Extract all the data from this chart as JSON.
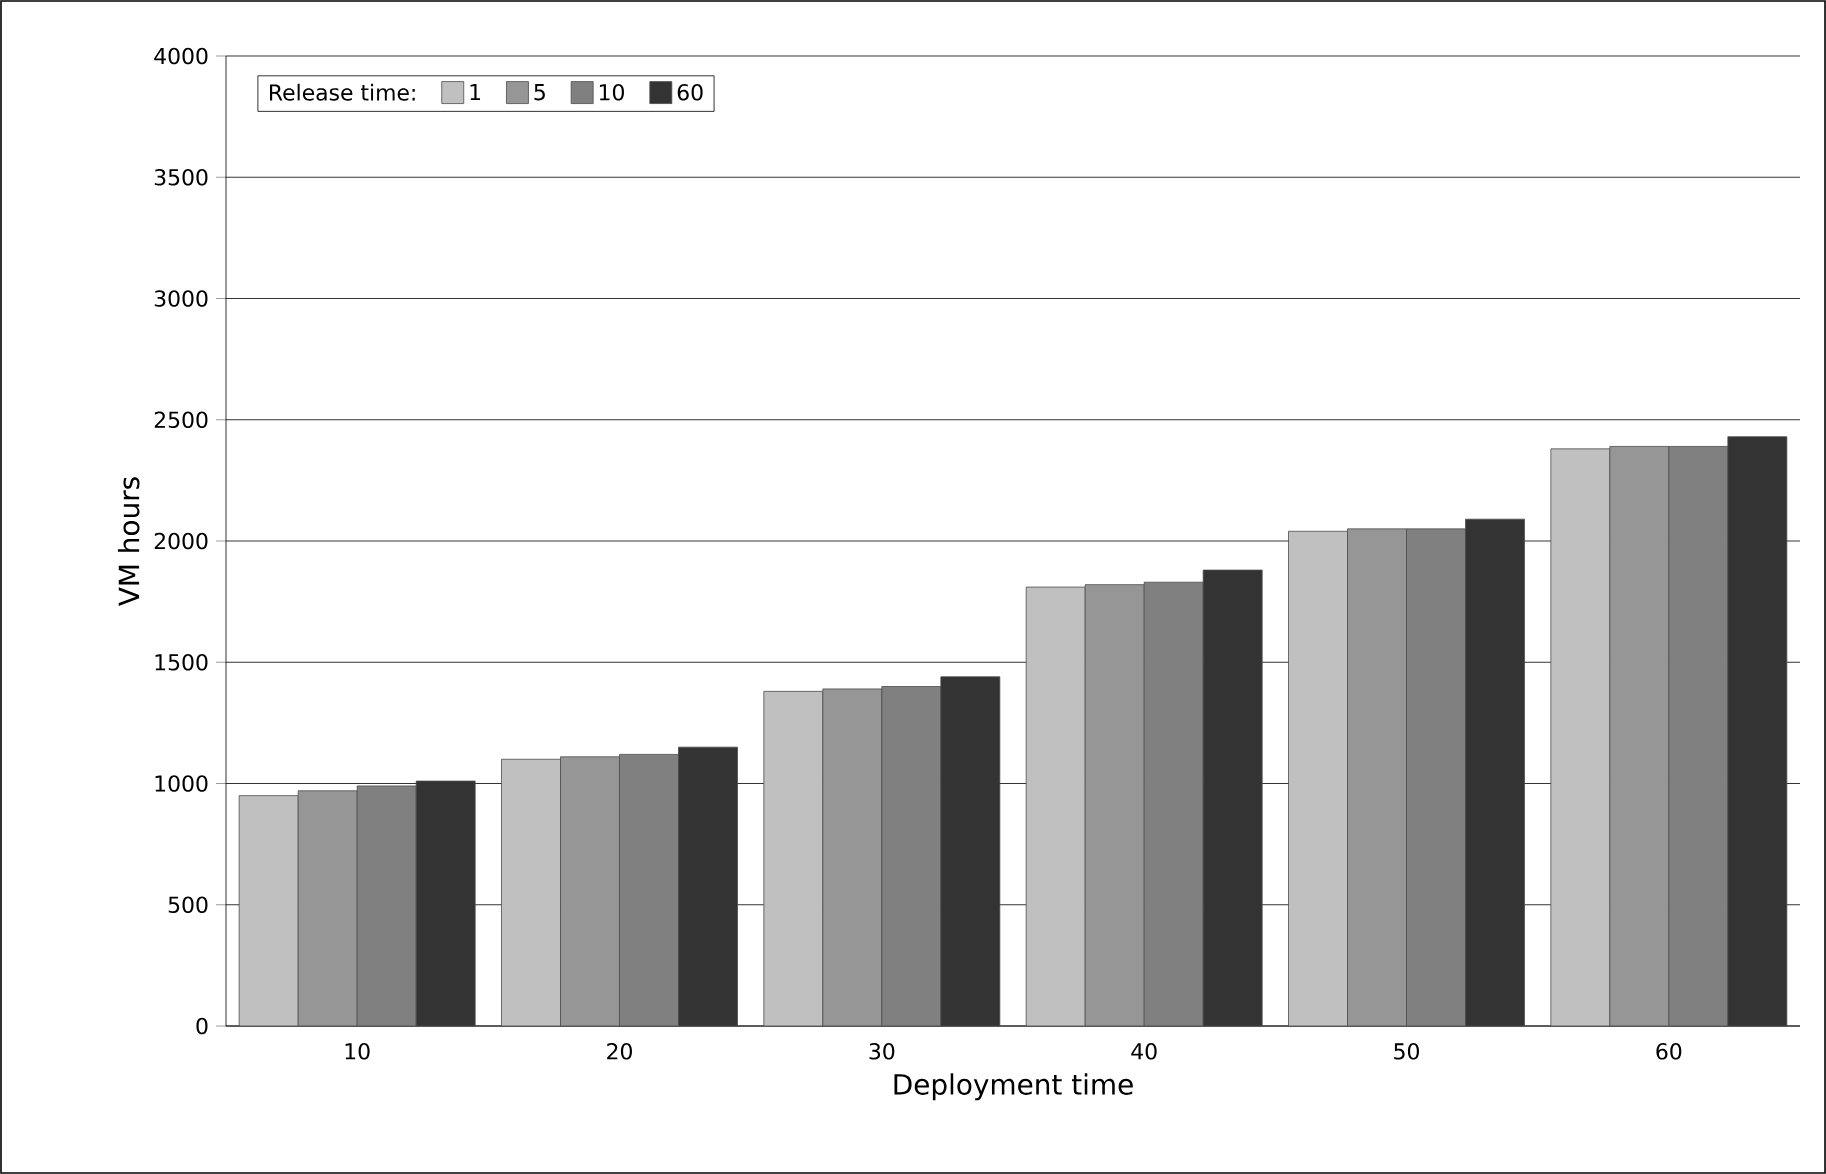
{
  "chart_data": {
    "type": "bar",
    "xlabel": "Deployment time",
    "ylabel": "VM hours",
    "legend_title": "Release time:",
    "categories": [
      "10",
      "20",
      "30",
      "40",
      "50",
      "60"
    ],
    "series": [
      {
        "name": "1",
        "color": "#c0c0c0",
        "values": [
          950,
          1100,
          1380,
          1810,
          2040,
          2380
        ]
      },
      {
        "name": "5",
        "color": "#969696",
        "values": [
          970,
          1110,
          1390,
          1820,
          2050,
          2390
        ]
      },
      {
        "name": "10",
        "color": "#808080",
        "values": [
          990,
          1120,
          1400,
          1830,
          2050,
          2390
        ]
      },
      {
        "name": "60",
        "color": "#333333",
        "values": [
          1010,
          1150,
          1440,
          1880,
          2090,
          2430
        ]
      }
    ],
    "ylim": [
      0,
      4000
    ],
    "yticks": [
      0,
      500,
      1000,
      1500,
      2000,
      2500,
      3000,
      3500,
      4000
    ],
    "grid": "y",
    "legend": "top left"
  }
}
